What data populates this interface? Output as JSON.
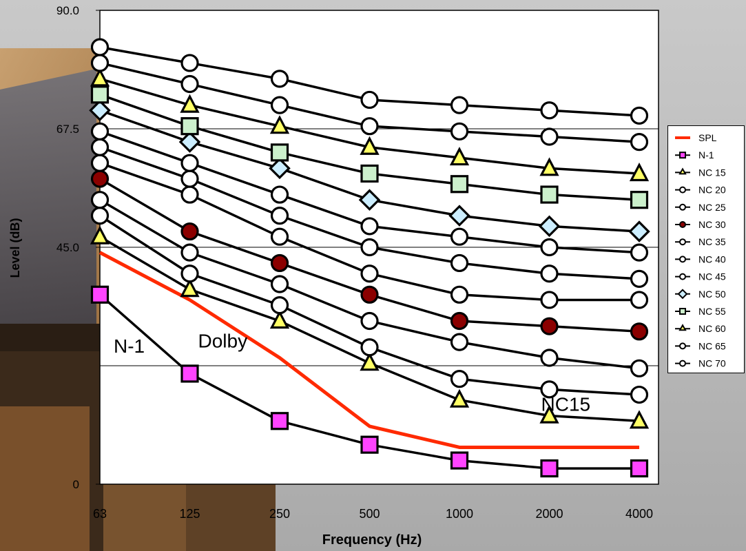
{
  "chart_data": {
    "type": "line",
    "xlabel": "Frequency (Hz)",
    "ylabel": "Level (dB)",
    "categories": [
      "63",
      "125",
      "250",
      "500",
      "1000",
      "2000",
      "4000"
    ],
    "ylim": [
      0,
      90
    ],
    "yticks": [
      "90.0",
      "67.5",
      "45.0",
      "0"
    ],
    "grid": "horizontal",
    "legend_position": "right",
    "series": [
      {
        "name": "SPL",
        "values": [
          44,
          35,
          24,
          11,
          7,
          7,
          7
        ],
        "color": "#ff2a00",
        "marker": "none"
      },
      {
        "name": "N-1",
        "values": [
          36,
          21,
          12,
          7.5,
          4.5,
          3,
          3
        ],
        "color": "#000000",
        "marker": "square",
        "fill": "#ff44ff"
      },
      {
        "name": "NC 15",
        "values": [
          47,
          37,
          31,
          23,
          16,
          13,
          12
        ],
        "color": "#000000",
        "marker": "triangle",
        "fill": "#ffff66"
      },
      {
        "name": "NC 20",
        "values": [
          51,
          40,
          34,
          26,
          20,
          18,
          17
        ],
        "color": "#000000",
        "marker": "circle",
        "fill": "#ffffff"
      },
      {
        "name": "NC 25",
        "values": [
          54,
          44,
          38,
          31,
          27,
          24,
          22
        ],
        "color": "#000000",
        "marker": "circle",
        "fill": "#ffffff"
      },
      {
        "name": "NC 30",
        "values": [
          58,
          48,
          42,
          36,
          31,
          30,
          29
        ],
        "color": "#000000",
        "marker": "circle",
        "fill": "#8b0000"
      },
      {
        "name": "NC 35",
        "values": [
          61,
          55,
          47,
          40,
          36,
          35,
          35
        ],
        "color": "#000000",
        "marker": "circle",
        "fill": "#ffffff"
      },
      {
        "name": "NC 40",
        "values": [
          64,
          58,
          51,
          45,
          42,
          40,
          39
        ],
        "color": "#000000",
        "marker": "circle",
        "fill": "#ffffff"
      },
      {
        "name": "NC 45",
        "values": [
          67,
          61,
          55,
          49,
          47,
          45,
          44
        ],
        "color": "#000000",
        "marker": "circle",
        "fill": "#ffffff"
      },
      {
        "name": "NC 50",
        "values": [
          71,
          65,
          60,
          54,
          51,
          49,
          48
        ],
        "color": "#000000",
        "marker": "diamond",
        "fill": "#cceeff"
      },
      {
        "name": "NC 55",
        "values": [
          74,
          68,
          63,
          59,
          57,
          55,
          54
        ],
        "color": "#000000",
        "marker": "square",
        "fill": "#ccf0cc"
      },
      {
        "name": "NC 60",
        "values": [
          77,
          72,
          68,
          64,
          62,
          60,
          59
        ],
        "color": "#000000",
        "marker": "triangle",
        "fill": "#ffff66"
      },
      {
        "name": "NC 65",
        "values": [
          80,
          76,
          72,
          68,
          67,
          66,
          65
        ],
        "color": "#000000",
        "marker": "circle",
        "fill": "#ffffff"
      },
      {
        "name": "NC 70",
        "values": [
          83,
          80,
          77,
          73,
          72,
          71,
          70
        ],
        "color": "#000000",
        "marker": "circle",
        "fill": "#ffffff"
      }
    ],
    "annotations": [
      {
        "text": "N-1",
        "color": "#000000",
        "at_category": "63",
        "value": 26
      },
      {
        "text": "Dolby",
        "color": "#ff2a00",
        "at_category": "125",
        "value": 27
      },
      {
        "text": "NC15",
        "color": "#000000",
        "at_category": "2000",
        "value": 15
      }
    ]
  }
}
